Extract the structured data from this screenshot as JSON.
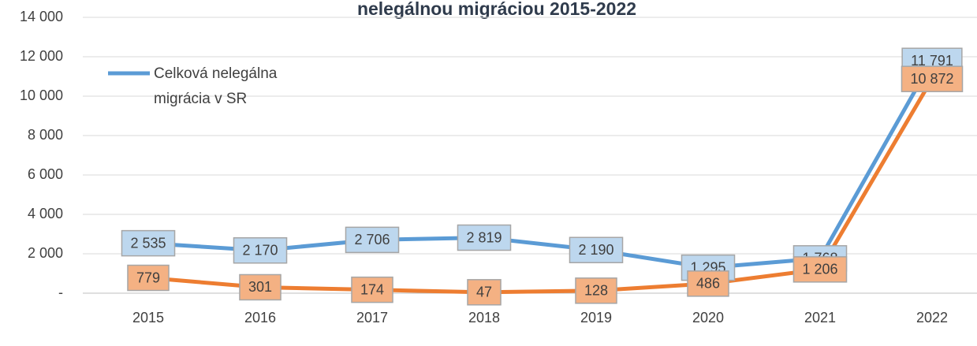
{
  "chart_data": {
    "type": "line",
    "title": "nelegálnou migráciou 2015-2022",
    "categories": [
      "2015",
      "2016",
      "2017",
      "2018",
      "2019",
      "2020",
      "2021",
      "2022"
    ],
    "series": [
      {
        "name": "Celková nelegálna migrácia v SR",
        "color": "#5b9bd5",
        "label_fill": "#bdd7ee",
        "values": [
          2535,
          2170,
          2706,
          2819,
          2190,
          1295,
          1768,
          11791
        ],
        "value_labels": [
          "2 535",
          "2 170",
          "2 706",
          "2 819",
          "2 190",
          "1 295",
          "1 768",
          "11 791"
        ]
      },
      {
        "color": "#ed7d31",
        "label_fill": "#f4b183",
        "values": [
          779,
          301,
          174,
          47,
          128,
          486,
          1206,
          10872
        ],
        "value_labels": [
          "779",
          "301",
          "174",
          "47",
          "128",
          "486",
          "1 206",
          "10 872"
        ]
      }
    ],
    "ylim": [
      0,
      14000
    ],
    "yticks": [
      {
        "value": 0,
        "label": "-"
      },
      {
        "value": 2000,
        "label": "2 000"
      },
      {
        "value": 4000,
        "label": "4 000"
      },
      {
        "value": 6000,
        "label": "6 000"
      },
      {
        "value": 8000,
        "label": "8 000"
      },
      {
        "value": 10000,
        "label": "10 000"
      },
      {
        "value": 12000,
        "label": "12 000"
      },
      {
        "value": 14000,
        "label": "14 000"
      }
    ],
    "grid": true
  }
}
